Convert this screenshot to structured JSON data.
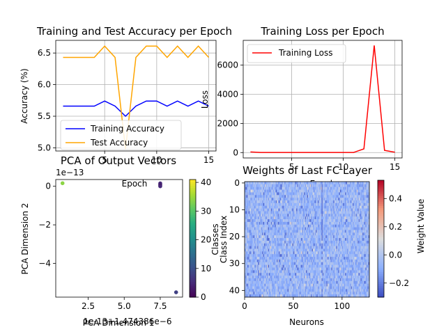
{
  "chart_data": [
    {
      "type": "line",
      "title": "Training and Test Accuracy per Epoch",
      "xlabel": "Epoch",
      "ylabel": "Accuracy (%)",
      "xlim": [
        0.3,
        15.7
      ],
      "ylim": [
        4.95,
        6.7
      ],
      "xticks": [
        "5",
        "10",
        "15"
      ],
      "yticks": [
        "5.0",
        "5.5",
        "6.0",
        "6.5"
      ],
      "grid": true,
      "legend": "lower-left",
      "x": [
        1,
        2,
        3,
        4,
        5,
        6,
        7,
        8,
        9,
        10,
        11,
        12,
        13,
        14,
        15
      ],
      "series": [
        {
          "name": "Training Accuracy",
          "color": "#0000ff",
          "values": [
            5.66,
            5.66,
            5.66,
            5.66,
            5.74,
            5.66,
            5.5,
            5.66,
            5.74,
            5.74,
            5.66,
            5.74,
            5.66,
            5.74,
            5.66
          ]
        },
        {
          "name": "Test Accuracy",
          "color": "#ffa500",
          "values": [
            6.43,
            6.43,
            6.43,
            6.43,
            6.61,
            6.43,
            4.98,
            6.43,
            6.61,
            6.61,
            6.43,
            6.61,
            6.43,
            6.61,
            6.43
          ]
        }
      ]
    },
    {
      "type": "line",
      "title": "Training Loss per Epoch",
      "xlabel": "Epoch",
      "ylabel": "Loss",
      "xlim": [
        0.3,
        15.7
      ],
      "ylim": [
        -370,
        7700
      ],
      "xticks": [
        "5",
        "10",
        "15"
      ],
      "yticks": [
        "0",
        "2000",
        "4000",
        "6000"
      ],
      "grid": true,
      "legend": "top-left",
      "x": [
        1,
        2,
        3,
        4,
        5,
        6,
        7,
        8,
        9,
        10,
        11,
        12,
        13,
        14,
        15
      ],
      "series": [
        {
          "name": "Training Loss",
          "color": "#ff0000",
          "values": [
            40,
            5,
            5,
            5,
            5,
            5,
            5,
            5,
            5,
            5,
            5,
            250,
            7350,
            150,
            20
          ]
        }
      ]
    },
    {
      "type": "scatter",
      "title": "PCA of Output Vectors",
      "xlabel": "PCA Dimension 1",
      "ylabel": "PCA Dimension 2",
      "x_offset_label": "1e-13+1.474386e−6",
      "y_scale_label": "1e−13",
      "xlim": [
        0.25,
        9.05
      ],
      "ylim": [
        -5.75,
        0.35
      ],
      "xticks": [
        "2.5",
        "5.0",
        "7.5"
      ],
      "yticks": [
        "0",
        "−2",
        "−4"
      ],
      "colorbar": {
        "min": 0,
        "max": 41,
        "ticks": [
          "0",
          "10",
          "20",
          "30",
          "40"
        ]
      },
      "points": [
        {
          "x": 0.72,
          "y": 0.16,
          "c": 34
        },
        {
          "x": 7.5,
          "y": 0.15,
          "c": 4
        },
        {
          "x": 7.5,
          "y": 0.1,
          "c": 6
        },
        {
          "x": 7.5,
          "y": 0.05,
          "c": 2
        },
        {
          "x": 7.5,
          "y": 0.0,
          "c": 5
        },
        {
          "x": 8.6,
          "y": -5.5,
          "c": 8
        }
      ]
    },
    {
      "type": "heatmap",
      "title": "Weights of Last FC Layer",
      "xlabel": "Neurons",
      "ylabel": "Class Index",
      "ylabel_overlap": "Classes",
      "cols": 128,
      "rows": 43,
      "xticks": [
        "0",
        "50",
        "100"
      ],
      "yticks": [
        "0",
        "10",
        "20",
        "30",
        "40"
      ],
      "colorbar": {
        "label": "Weight Value",
        "min": -0.3,
        "max": 0.53,
        "ticks": [
          "−0.2",
          "0.0",
          "0.2",
          "0.4"
        ]
      },
      "value_range": [
        -0.3,
        0.53
      ]
    }
  ]
}
